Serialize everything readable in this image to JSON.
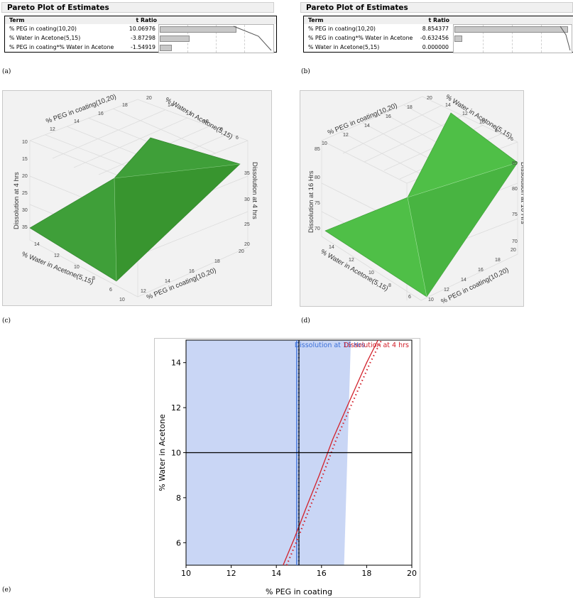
{
  "figure_labels": {
    "a": "(a)",
    "b": "(b)",
    "c": "(c)",
    "d": "(d)",
    "e": "(e)"
  },
  "pareto_a": {
    "title": "Pareto Plot of Estimates",
    "col_term": "Term",
    "col_t": "t Ratio",
    "rows": [
      {
        "term": "% PEG in coating(10,20)",
        "t": "10.06976",
        "value": 10.06976
      },
      {
        "term": "% Water in Acetone(5,15)",
        "t": "-3.87298",
        "value": -3.87298
      },
      {
        "term": "% PEG in coating*% Water in Acetone",
        "t": "-1.54919",
        "value": -1.54919
      }
    ]
  },
  "pareto_b": {
    "title": "Pareto Plot of Estimates",
    "col_term": "Term",
    "col_t": "t Ratio",
    "rows": [
      {
        "term": "% PEG in coating(10,20)",
        "t": "8.854377",
        "value": 8.854377
      },
      {
        "term": "% PEG in coating*% Water in Acetone",
        "t": "-0.632456",
        "value": -0.632456
      },
      {
        "term": "% Water in Acetone(5,15)",
        "t": "0.000000",
        "value": 0.0
      }
    ]
  },
  "surface_c": {
    "zlabel": "Dissolution at 4 hrs",
    "peg_label": "% PEG in coating(10,20)",
    "water_label": "% Water in Acetone(5,15)",
    "surface_color": "#3a9a35",
    "z_ticks_left": [
      "10",
      "15",
      "20",
      "25",
      "30",
      "35"
    ],
    "z_ticks_right": [
      "20",
      "25",
      "30",
      "35"
    ],
    "peg_ticks_top": [
      "12",
      "14",
      "16",
      "18",
      "20"
    ],
    "water_ticks_top": [
      "14",
      "12",
      "10",
      "8",
      "6"
    ],
    "water_ticks_bottom": [
      "14",
      "12",
      "10",
      "8",
      "6"
    ],
    "peg_ticks_bottom": [
      "10",
      "12",
      "14",
      "16",
      "18",
      "20"
    ]
  },
  "surface_d": {
    "zlabel": "Dissolution at 16 Hrs",
    "peg_label": "% PEG in coating(10,20)",
    "water_label": "% Water in Acetone(5,15)",
    "surface_color": "#4cbb45",
    "z_ticks_left": [
      "70",
      "75",
      "80",
      "85"
    ],
    "z_ticks_right": [
      "70",
      "75",
      "80",
      "85"
    ],
    "peg_ticks_top": [
      "10",
      "12",
      "14",
      "16",
      "18",
      "20"
    ],
    "water_ticks_top": [
      "14",
      "12",
      "10",
      "8",
      "6"
    ],
    "water_ticks_bottom": [
      "14",
      "12",
      "10",
      "8",
      "6"
    ],
    "peg_ticks_bottom": [
      "10",
      "12",
      "14",
      "16",
      "18",
      "20"
    ]
  },
  "chart_data": {
    "type": "line",
    "xlabel": "% PEG in coating",
    "ylabel": "% Water in Acetone",
    "xlim": [
      10,
      20
    ],
    "ylim": [
      5,
      15
    ],
    "xticks": [
      10,
      12,
      14,
      16,
      18,
      20
    ],
    "yticks": [
      6,
      8,
      10,
      12,
      14
    ],
    "crosshair": {
      "x": 15,
      "y": 10
    },
    "shaded_region": {
      "label": "Dissolution at 16 Hrs",
      "color": "#c9d6f5",
      "polygon": [
        [
          10,
          5
        ],
        [
          17.0,
          5
        ],
        [
          17.3,
          15
        ],
        [
          10,
          15
        ]
      ]
    },
    "series": [
      {
        "name": "Dissolution at 16 Hrs",
        "color": "#3a6fd8",
        "x": [
          14.9,
          14.9
        ],
        "y": [
          5,
          15
        ]
      },
      {
        "name": "Dissolution at 4 hrs",
        "color": "#d2202a",
        "x": [
          14.3,
          14.8,
          15.3,
          15.9,
          16.5,
          17.2,
          18.0,
          18.5
        ],
        "y": [
          5.0,
          6.2,
          7.5,
          9.0,
          10.6,
          12.2,
          14.0,
          15.0
        ]
      }
    ]
  }
}
